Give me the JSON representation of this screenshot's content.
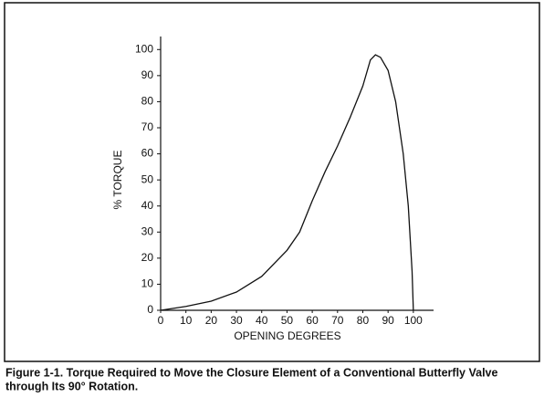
{
  "chart_data": {
    "type": "line",
    "x_label": "OPENING DEGREES",
    "y_label": "% TORQUE",
    "caption": [
      "Figure 1-1. Torque Required to Move the Closure Element of a Conventional Butterfly Valve",
      "through Its 90° Rotation."
    ],
    "series": [
      {
        "color": "#111111",
        "x": [
          0,
          10,
          20,
          30,
          40,
          50,
          55,
          60,
          65,
          70,
          75,
          80,
          83,
          85,
          87,
          90,
          93,
          96,
          98,
          99.5,
          100
        ],
        "values": [
          0,
          1.5,
          3.5,
          7,
          13,
          23,
          30,
          42,
          53,
          63,
          74,
          86,
          96,
          98,
          97,
          92,
          80,
          60,
          40,
          15,
          0
        ]
      }
    ],
    "xlim": [
      0,
      108
    ],
    "ylim": [
      0,
      105
    ],
    "xticks": [
      0,
      10,
      20,
      30,
      40,
      50,
      60,
      70,
      80,
      90,
      100
    ],
    "yticks": [
      0,
      10,
      20,
      30,
      40,
      50,
      60,
      70,
      80,
      90,
      100
    ],
    "grid": false
  }
}
